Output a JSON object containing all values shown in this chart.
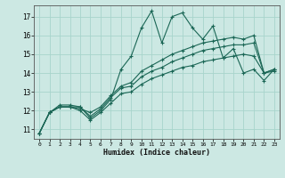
{
  "xlabel": "Humidex (Indice chaleur)",
  "bg_color": "#cce8e3",
  "grid_color": "#a8d4cc",
  "line_color": "#1a6655",
  "xlim": [
    -0.5,
    23.5
  ],
  "ylim": [
    10.5,
    17.6
  ],
  "xticks": [
    0,
    1,
    2,
    3,
    4,
    5,
    6,
    7,
    8,
    9,
    10,
    11,
    12,
    13,
    14,
    15,
    16,
    17,
    18,
    19,
    20,
    21,
    22,
    23
  ],
  "yticks": [
    11,
    12,
    13,
    14,
    15,
    16,
    17
  ],
  "series": [
    [
      10.8,
      11.9,
      12.2,
      12.2,
      12.2,
      11.6,
      12.0,
      12.6,
      14.2,
      14.9,
      16.4,
      17.3,
      15.6,
      17.0,
      17.2,
      16.4,
      15.8,
      16.5,
      14.8,
      15.3,
      14.0,
      14.2,
      13.6,
      14.2
    ],
    [
      10.8,
      11.9,
      12.2,
      12.2,
      12.1,
      11.9,
      12.2,
      12.8,
      13.3,
      13.5,
      14.1,
      14.4,
      14.7,
      15.0,
      15.2,
      15.4,
      15.6,
      15.7,
      15.8,
      15.9,
      15.8,
      16.0,
      14.0,
      14.2
    ],
    [
      10.8,
      11.9,
      12.3,
      12.3,
      12.2,
      11.7,
      12.1,
      12.7,
      13.2,
      13.3,
      13.8,
      14.1,
      14.3,
      14.6,
      14.8,
      15.0,
      15.2,
      15.3,
      15.4,
      15.5,
      15.5,
      15.6,
      14.0,
      14.2
    ],
    [
      10.8,
      11.9,
      12.2,
      12.2,
      12.0,
      11.5,
      11.9,
      12.4,
      12.9,
      13.0,
      13.4,
      13.7,
      13.9,
      14.1,
      14.3,
      14.4,
      14.6,
      14.7,
      14.8,
      14.9,
      15.0,
      14.9,
      14.0,
      14.1
    ]
  ]
}
